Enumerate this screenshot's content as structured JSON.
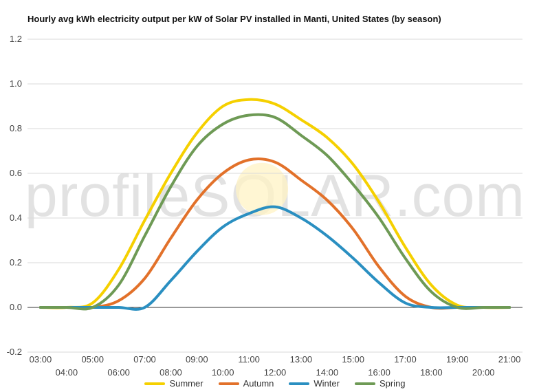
{
  "watermark": "profileSOLAR.com",
  "colors": {
    "grid": "#d9d9d9",
    "zero_line": "#333333",
    "tick_text": "#444444",
    "sun": "#fff3c4"
  },
  "chart_data": {
    "type": "line",
    "title": "Hourly avg kWh electricity output per kW of Solar PV installed in Manti, United States (by season)",
    "xlabel": "",
    "ylabel": "",
    "x_unit": "hour",
    "xlim": [
      2.5,
      21.5
    ],
    "ylim": [
      -0.2,
      1.2
    ],
    "y_ticks": [
      -0.2,
      0.0,
      0.2,
      0.4,
      0.6,
      0.8,
      1.0,
      1.2
    ],
    "y_tick_labels": [
      "-0.2",
      "0.0",
      "0.2",
      "0.4",
      "0.6",
      "0.8",
      "1.0",
      "1.2"
    ],
    "x_ticks": [
      3,
      4,
      5,
      6,
      7,
      8,
      9,
      10,
      11,
      12,
      13,
      14,
      15,
      16,
      17,
      18,
      19,
      20,
      21
    ],
    "x_tick_labels": [
      "03:00",
      "04:00",
      "05:00",
      "06:00",
      "07:00",
      "08:00",
      "09:00",
      "10:00",
      "11:00",
      "12:00",
      "13:00",
      "14:00",
      "15:00",
      "16:00",
      "17:00",
      "18:00",
      "19:00",
      "20:00",
      "21:00"
    ],
    "grid": true,
    "legend_position": "bottom",
    "x": [
      3,
      4,
      5,
      6,
      7,
      8,
      9,
      10,
      11,
      12,
      13,
      14,
      15,
      16,
      17,
      18,
      19,
      20,
      21
    ],
    "series": [
      {
        "name": "Summer",
        "color": "#f5d000",
        "values": [
          0.0,
          0.0,
          0.02,
          0.17,
          0.39,
          0.6,
          0.78,
          0.9,
          0.93,
          0.91,
          0.84,
          0.76,
          0.64,
          0.47,
          0.27,
          0.1,
          0.01,
          0.0,
          0.0
        ]
      },
      {
        "name": "Autumn",
        "color": "#e2712a",
        "values": [
          0.0,
          0.0,
          0.0,
          0.03,
          0.13,
          0.31,
          0.48,
          0.6,
          0.66,
          0.65,
          0.57,
          0.48,
          0.35,
          0.18,
          0.05,
          0.0,
          0.0,
          0.0,
          0.0
        ]
      },
      {
        "name": "Winter",
        "color": "#2a8fc1",
        "values": [
          0.0,
          0.0,
          0.0,
          0.0,
          0.0,
          0.12,
          0.25,
          0.36,
          0.42,
          0.45,
          0.4,
          0.32,
          0.22,
          0.11,
          0.02,
          0.0,
          0.0,
          0.0,
          0.0
        ]
      },
      {
        "name": "Spring",
        "color": "#6e9a55",
        "values": [
          0.0,
          0.0,
          0.0,
          0.1,
          0.32,
          0.54,
          0.72,
          0.82,
          0.86,
          0.85,
          0.77,
          0.68,
          0.55,
          0.4,
          0.22,
          0.07,
          0.0,
          0.0,
          0.0
        ]
      }
    ]
  }
}
